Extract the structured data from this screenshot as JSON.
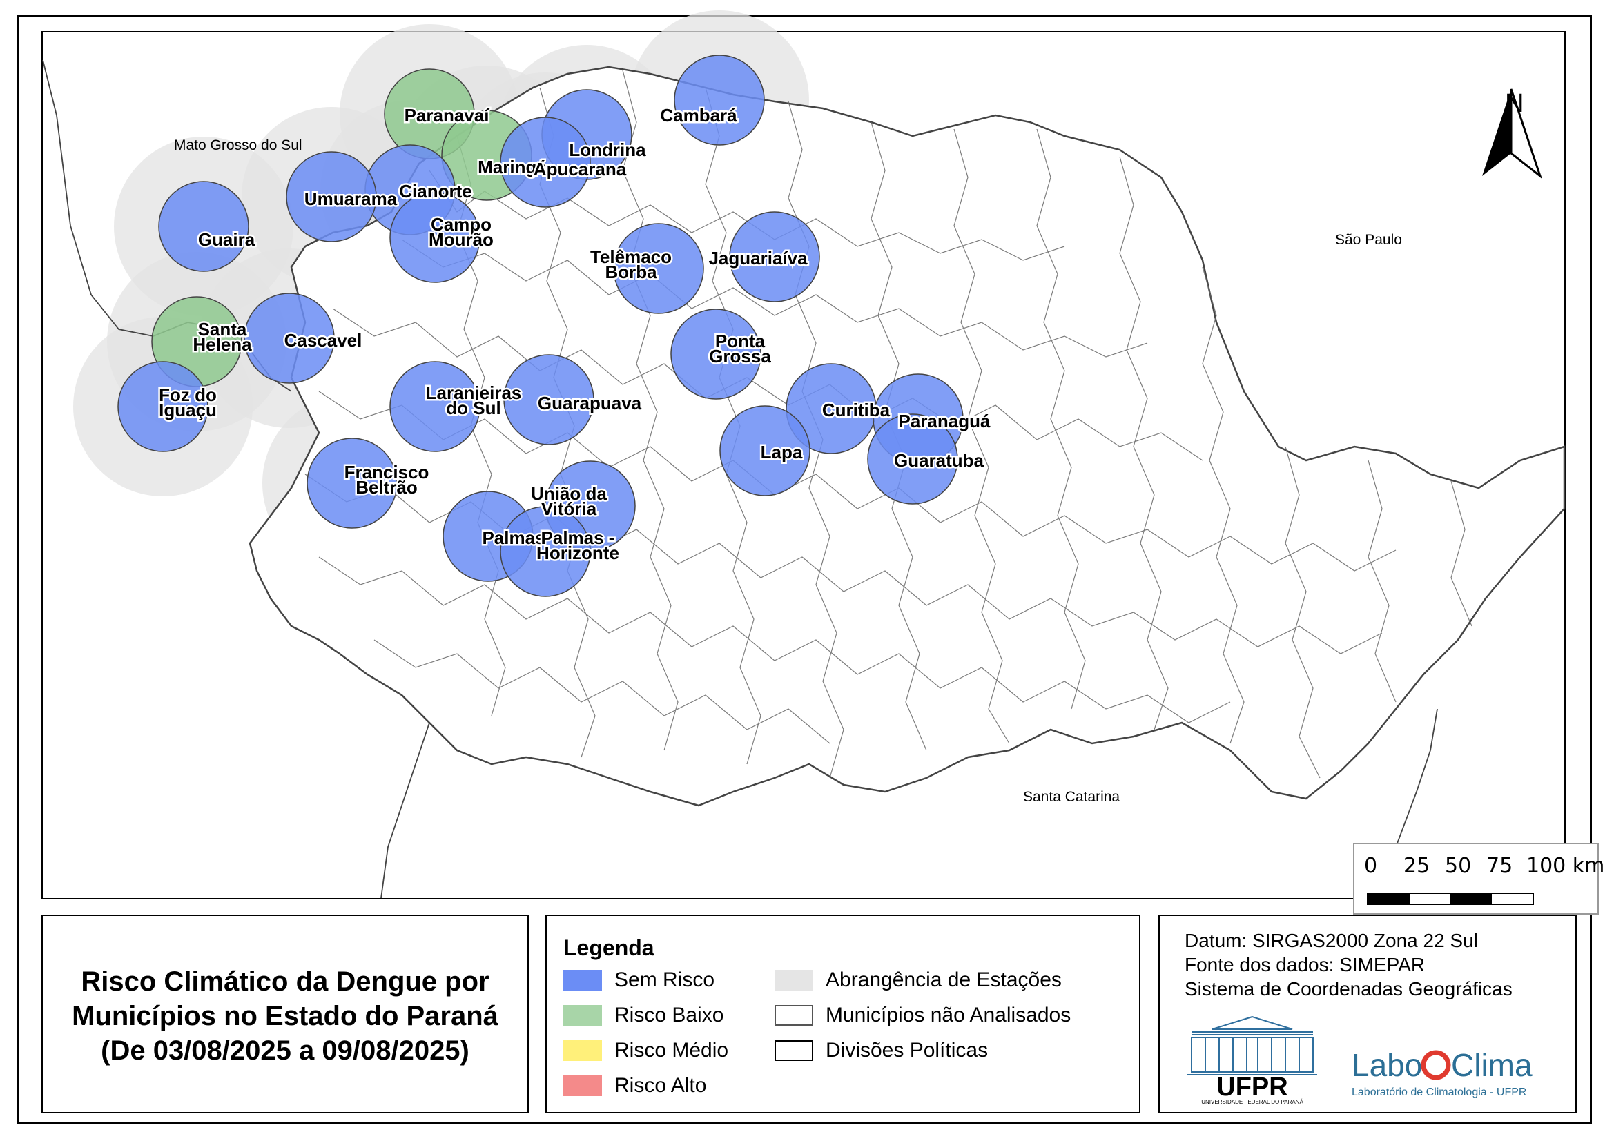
{
  "map": {
    "north_label": "N",
    "regions": {
      "mato_grosso_do_sul": "Mato Grosso do Sul",
      "sao_paulo": "São Paulo",
      "santa_catarina": "Santa Catarina"
    },
    "stations": [
      {
        "name": "Paranavaí",
        "risk": "Risco Baixo"
      },
      {
        "name": "Cambará",
        "risk": "Sem Risco"
      },
      {
        "name": "Londrina",
        "risk": "Sem Risco"
      },
      {
        "name": "Maringá",
        "risk": "Risco Baixo"
      },
      {
        "name": "Apucarana",
        "risk": "Sem Risco"
      },
      {
        "name": "Cianorte",
        "risk": "Sem Risco"
      },
      {
        "name": "Umuarama",
        "risk": "Sem Risco"
      },
      {
        "name": "Campo Mourão",
        "risk": "Sem Risco"
      },
      {
        "name": "Guaira",
        "risk": "Sem Risco"
      },
      {
        "name": "Telêmaco Borba",
        "risk": "Sem Risco"
      },
      {
        "name": "Jaguariaíva",
        "risk": "Sem Risco"
      },
      {
        "name": "Santa Helena",
        "risk": "Risco Baixo"
      },
      {
        "name": "Cascavel",
        "risk": "Sem Risco"
      },
      {
        "name": "Ponta Grossa",
        "risk": "Sem Risco"
      },
      {
        "name": "Foz do Iguaçu",
        "risk": "Sem Risco"
      },
      {
        "name": "Laranjeiras do Sul",
        "risk": "Sem Risco"
      },
      {
        "name": "Guarapuava",
        "risk": "Sem Risco"
      },
      {
        "name": "Curitiba",
        "risk": "Sem Risco"
      },
      {
        "name": "Paranaguá",
        "risk": "Sem Risco"
      },
      {
        "name": "Lapa",
        "risk": "Sem Risco"
      },
      {
        "name": "Guaratuba",
        "risk": "Sem Risco"
      },
      {
        "name": "Francisco Beltrão",
        "risk": "Sem Risco"
      },
      {
        "name": "União da Vitória",
        "risk": "Sem Risco"
      },
      {
        "name": "Palmas",
        "risk": "Sem Risco"
      },
      {
        "name": "Palmas - Horizonte",
        "risk": "Sem Risco"
      }
    ],
    "scale": {
      "ticks": [
        "0",
        "25",
        "50",
        "75",
        "100 km"
      ]
    }
  },
  "title": {
    "line1": "Risco Climático da Dengue por",
    "line2": "Municípios no Estado do Paraná",
    "line3": "(De 03/08/2025 a 09/08/2025)"
  },
  "legend": {
    "title": "Legenda",
    "items": [
      {
        "label": "Sem Risco",
        "color": "#6b8df5"
      },
      {
        "label": "Risco Baixo",
        "color": "#a8d5a8"
      },
      {
        "label": "Risco Médio",
        "color": "#fff07a"
      },
      {
        "label": "Risco Alto",
        "color": "#f48a8a"
      },
      {
        "label": "Abrangência de Estações",
        "color": "#e5e5e5"
      },
      {
        "label": "Municípios não Analisados",
        "color": "#ffffff"
      },
      {
        "label": "Divisões Políticas",
        "color": "#ffffff"
      }
    ]
  },
  "info": {
    "datum": "Datum: SIRGAS2000 Zona 22 Sul",
    "source": "Fonte dos dados: SIMEPAR",
    "crs": "Sistema de Coordenadas Geográficas"
  },
  "logos": {
    "ufpr_text": "UFPR",
    "ufpr_subtitle": "UNIVERSIDADE FEDERAL DO PARANÁ",
    "labo_left": "Labo",
    "labo_right": "Clima",
    "labo_subtitle": "Laboratório de Climatologia - UFPR"
  },
  "colors": {
    "sem_risco": "#6b8df5",
    "risco_baixo": "#8fc98f",
    "coverage": "#e3e3e3"
  }
}
